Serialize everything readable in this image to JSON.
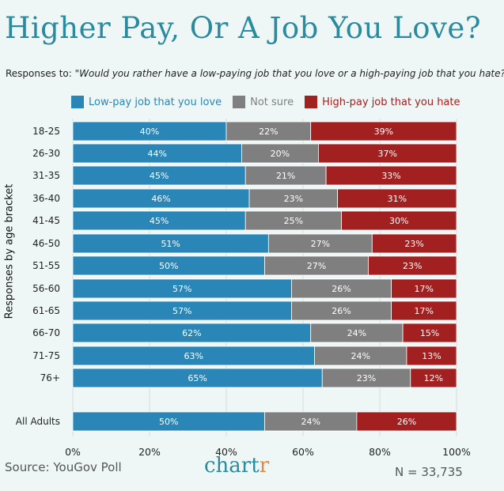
{
  "title": "Higher Pay, Or A Job You Love?",
  "subtitle": {
    "prefix": "Responses to: ",
    "question": "\"Would you rather have a low-paying job that you love or a high-paying job that you hate?\""
  },
  "colors": {
    "title": "#2a8a9e",
    "love": "#2a86b7",
    "notsure": "#7f7f7f",
    "hate": "#a32020",
    "brand_main": "#2a8a9e",
    "brand_accent": "#e48a3c"
  },
  "footer": {
    "source": "Source: YouGov Poll",
    "brand": "chartr",
    "n": "N = 33,735"
  },
  "chart_data": {
    "type": "bar",
    "orientation": "horizontal",
    "stacked": true,
    "ylabel": "Responses by age bracket",
    "xlabel": "",
    "xlim": [
      0,
      100
    ],
    "xticks": [
      "0%",
      "20%",
      "40%",
      "60%",
      "80%",
      "100%"
    ],
    "categories": [
      "18-25",
      "26-30",
      "31-35",
      "36-40",
      "41-45",
      "46-50",
      "51-55",
      "56-60",
      "61-65",
      "66-70",
      "71-75",
      "76+",
      "All Adults"
    ],
    "series": [
      {
        "name": "Low-pay job that you love",
        "color": "#2a86b7",
        "values": [
          40,
          44,
          45,
          46,
          45,
          51,
          50,
          57,
          57,
          62,
          63,
          65,
          50
        ]
      },
      {
        "name": "Not sure",
        "color": "#7f7f7f",
        "values": [
          22,
          20,
          21,
          23,
          25,
          27,
          27,
          26,
          26,
          24,
          24,
          23,
          24
        ]
      },
      {
        "name": "High-pay job that you hate",
        "color": "#a32020",
        "values": [
          39,
          37,
          33,
          31,
          30,
          23,
          23,
          17,
          17,
          15,
          13,
          12,
          26
        ]
      }
    ],
    "legend": "top"
  }
}
